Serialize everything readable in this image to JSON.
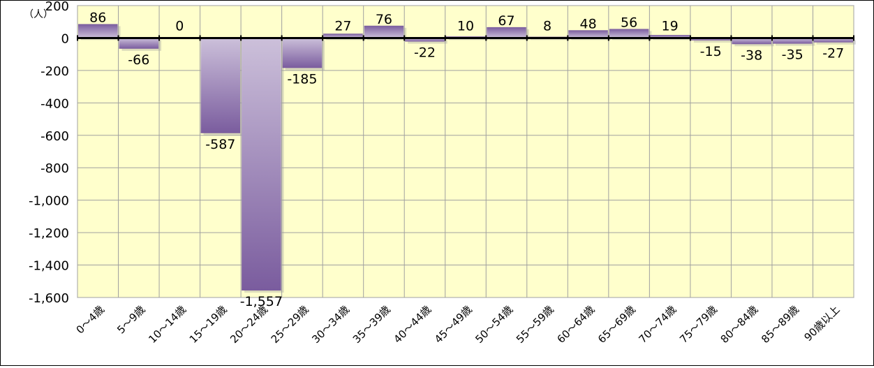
{
  "chart_data": {
    "type": "bar",
    "unit_label": "（人）",
    "categories": [
      "0～4歳",
      "5～9歳",
      "10～14歳",
      "15～19歳",
      "20～24歳",
      "25～29歳",
      "30～34歳",
      "35～39歳",
      "40～44歳",
      "45～49歳",
      "50～54歳",
      "55～59歳",
      "60～64歳",
      "65～69歳",
      "70～74歳",
      "75～79歳",
      "80～84歳",
      "85～89歳",
      "90歳以上"
    ],
    "values": [
      86,
      -66,
      0,
      -587,
      -1557,
      -185,
      27,
      76,
      -22,
      10,
      67,
      8,
      48,
      56,
      19,
      -15,
      -38,
      -35,
      -27
    ],
    "data_labels": [
      "86",
      "-66",
      "0",
      "-587",
      "-1,557",
      "-185",
      "27",
      "76",
      "-22",
      "10",
      "67",
      "8",
      "48",
      "56",
      "19",
      "-15",
      "-38",
      "-35",
      "-27"
    ],
    "ylim": [
      -1600,
      200
    ],
    "yticks": [
      200,
      0,
      -200,
      -400,
      -600,
      -800,
      -1000,
      -1200,
      -1400,
      -1600
    ],
    "ytick_labels": [
      "200",
      "0",
      "-200",
      "-400",
      "-600",
      "-800",
      "-1,000",
      "-1,200",
      "-1,400",
      "-1,600"
    ],
    "grid": true,
    "colors": {
      "plot_background": "#FFFFCC",
      "grid": "#A0A0A0",
      "bar_light": "#CCC0DA",
      "bar_dark": "#7A5C9E"
    }
  }
}
